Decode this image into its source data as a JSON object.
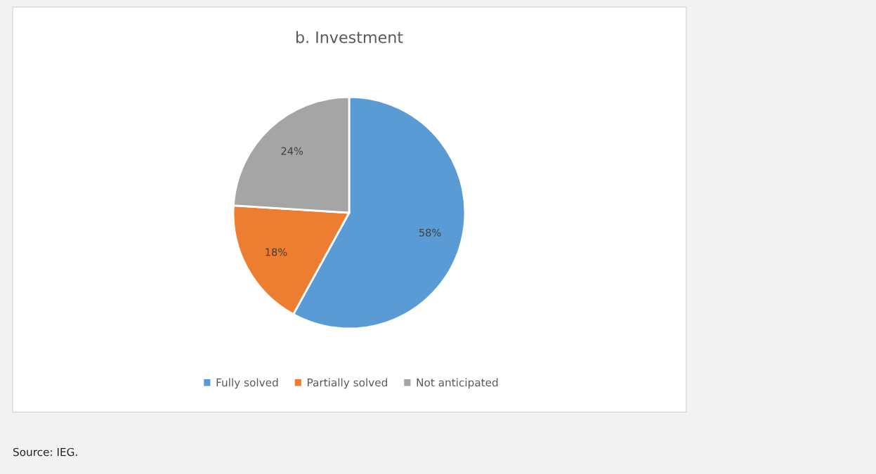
{
  "chart_data": {
    "type": "pie",
    "title": "b. Investment",
    "categories": [
      "Fully solved",
      "Partially solved",
      "Not anticipated"
    ],
    "values": [
      58,
      18,
      24
    ],
    "colors": [
      "#5b9bd5",
      "#ed7d31",
      "#a5a5a5"
    ],
    "value_labels": [
      "58%",
      "18%",
      "24%"
    ],
    "legend": "bottom",
    "annotations": [
      "Source: IEG."
    ]
  }
}
